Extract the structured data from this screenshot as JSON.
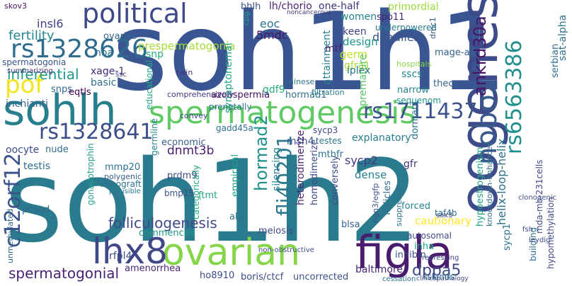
{
  "words": [
    {
      "text": "soh1h2",
      "color": "#2a7b8e"
    },
    {
      "text": "soh1h1",
      "color": "#3a5692"
    },
    {
      "text": "oogenesis",
      "color": "#3e4b8a"
    },
    {
      "text": "spermatogenesis",
      "color": "#5fc963"
    },
    {
      "text": "ovarian",
      "color": "#86d549"
    },
    {
      "text": "sohlh",
      "color": "#277f8e"
    },
    {
      "text": "figla",
      "color": "#4a1c6e"
    },
    {
      "text": "political",
      "color": "#3f4889"
    },
    {
      "text": "nobox",
      "color": "#38598c"
    },
    {
      "text": "lhx8",
      "color": "#3f4788"
    },
    {
      "text": "pof",
      "color": "#f1e51d"
    },
    {
      "text": "rs1328626",
      "color": "#2f6b8e"
    },
    {
      "text": "rs1711437",
      "color": "#3b528b"
    },
    {
      "text": "rs1328641",
      "color": "#3c4f8a"
    },
    {
      "text": "rs6563386",
      "color": "#218f8d"
    },
    {
      "text": "ankrd30a",
      "color": "#481467"
    },
    {
      "text": "c12orf12",
      "color": "#3b528b"
    },
    {
      "text": "flj40201",
      "color": "#2a788e"
    },
    {
      "text": "hormad2",
      "color": "#21908d"
    },
    {
      "text": "helix-loop-helix",
      "color": "#2d708e"
    },
    {
      "text": "folliculogenesis",
      "color": "#3e4a89"
    },
    {
      "text": "dppa5",
      "color": "#3e4989"
    },
    {
      "text": "spermatogonial",
      "color": "#482374"
    },
    {
      "text": "inferential",
      "color": "#1f9a8a"
    },
    {
      "text": "fertility",
      "color": "#25848e"
    },
    {
      "text": "skov3",
      "color": "#471365"
    },
    {
      "text": "insl6",
      "color": "#424086"
    },
    {
      "text": "bhlh",
      "color": "#3b528b"
    },
    {
      "text": "lh/chorio",
      "color": "#482173"
    },
    {
      "text": "one-half",
      "color": "#46327e"
    },
    {
      "text": "noncancerous",
      "color": "#453581"
    },
    {
      "text": "primordial",
      "color": "#9bd93c"
    },
    {
      "text": "spo11",
      "color": "#481f70"
    },
    {
      "text": "underpowered",
      "color": "#297a8e"
    },
    {
      "text": "ovaries",
      "color": "#31688e"
    },
    {
      "text": "prespermatogonia",
      "color": "#a5db36"
    },
    {
      "text": "women",
      "color": "#25858e"
    },
    {
      "text": "5mdc",
      "color": "#481668"
    },
    {
      "text": "eoc",
      "color": "#2c728e"
    },
    {
      "text": "cpg",
      "color": "#1f9e89"
    },
    {
      "text": "noa",
      "color": "#2a788e"
    },
    {
      "text": "deadliest",
      "color": "#3a548c"
    },
    {
      "text": "keen",
      "color": "#414487"
    },
    {
      "text": "design",
      "color": "#1f958b"
    },
    {
      "text": "germ",
      "color": "#bddf26"
    },
    {
      "text": "mage-a1",
      "color": "#34618d"
    },
    {
      "text": "dmc1",
      "color": "#38588c"
    },
    {
      "text": "serbian",
      "color": "#2e6e8e"
    },
    {
      "text": "theca",
      "color": "#355f8d"
    },
    {
      "text": "sat-alpha",
      "color": "#2c728e"
    },
    {
      "text": "xage-1",
      "color": "#482878"
    },
    {
      "text": "basic",
      "color": "#2c728e"
    },
    {
      "text": "snps",
      "color": "#31688e"
    },
    {
      "text": "eqtls",
      "color": "#440154"
    },
    {
      "text": "inchianti",
      "color": "#33638d"
    },
    {
      "text": "spermatogonia",
      "color": "#3b528b"
    },
    {
      "text": "summarizing",
      "color": "#472d7b"
    },
    {
      "text": "snp",
      "color": "#27ad81"
    },
    {
      "text": "ssc",
      "color": "#3e4a89"
    },
    {
      "text": "twin",
      "color": "#46337f"
    },
    {
      "text": "gfra1",
      "color": "#a2da37"
    },
    {
      "text": "iplex",
      "color": "#2c738e"
    },
    {
      "text": "sscs",
      "color": "#25848e"
    },
    {
      "text": "narrow",
      "color": "#26828e"
    },
    {
      "text": "sequenom",
      "color": "#1f948c"
    },
    {
      "text": "premature",
      "color": "#56c667"
    },
    {
      "text": "attainment",
      "color": "#26828e"
    },
    {
      "text": "hospitals",
      "color": "#8bd646"
    },
    {
      "text": "mtf",
      "color": "#482374"
    },
    {
      "text": "gdf9",
      "color": "#25ab82"
    },
    {
      "text": "chinese",
      "color": "#2d708e"
    },
    {
      "text": "azoospermia",
      "color": "#471063"
    },
    {
      "text": "filtration",
      "color": "#277f8e"
    },
    {
      "text": "hormad1",
      "color": "#2e6e8e"
    },
    {
      "text": "educational",
      "color": "#21a585"
    },
    {
      "text": "synaptonemal",
      "color": "#20a386"
    },
    {
      "text": "germline",
      "color": "#26828e"
    },
    {
      "text": "comprehensively",
      "color": "#453581"
    },
    {
      "text": "convey",
      "color": "#404688"
    },
    {
      "text": "prenatally",
      "color": "#2d708e"
    },
    {
      "text": "gadd45a",
      "color": "#2e6f8e"
    },
    {
      "text": "economic",
      "color": "#355f8d"
    },
    {
      "text": "msh4",
      "color": "#3b528b"
    },
    {
      "text": "dnmt3b",
      "color": "#481c6e"
    },
    {
      "text": "sycp3",
      "color": "#3e4a89"
    },
    {
      "text": "testes",
      "color": "#2a788e"
    },
    {
      "text": "explanatory",
      "color": "#287d8e"
    },
    {
      "text": "dormant",
      "color": "#2b748e"
    },
    {
      "text": "sycp2",
      "color": "#443983"
    },
    {
      "text": "gfr",
      "color": "#46327e"
    },
    {
      "text": "nude",
      "color": "#2f6b8e"
    },
    {
      "text": "oocyte",
      "color": "#3e4c8a"
    },
    {
      "text": "testis",
      "color": "#2c728e"
    },
    {
      "text": "mthfr",
      "color": "#2c728e"
    },
    {
      "text": "dense",
      "color": "#277f8e"
    },
    {
      "text": "mmp20",
      "color": "#2c728e"
    },
    {
      "text": "polygenic",
      "color": "#355e8d"
    },
    {
      "text": "xenograft",
      "color": "#2c728e"
    },
    {
      "text": "plausible",
      "color": "#287c8e"
    },
    {
      "text": "prdm9",
      "color": "#3f4788"
    },
    {
      "text": "empirical",
      "color": "#1fa088"
    },
    {
      "text": "heterodimerize",
      "color": "#482677"
    },
    {
      "text": "homodimerize",
      "color": "#3e4a89"
    },
    {
      "text": "silencing",
      "color": "#25848e"
    },
    {
      "text": "ftmt",
      "color": "#20a386"
    },
    {
      "text": "taf4b",
      "color": "#2f6c8e"
    },
    {
      "text": "forced",
      "color": "#25848e"
    },
    {
      "text": "cautionary",
      "color": "#fde725"
    },
    {
      "text": "gonadotrophin",
      "color": "#1fa187"
    },
    {
      "text": "posed",
      "color": "#31688e"
    },
    {
      "text": "bmp15",
      "color": "#3c4f8a"
    },
    {
      "text": "categorically",
      "color": "#22a884"
    },
    {
      "text": "alu",
      "color": "#2c728e"
    },
    {
      "text": "conversely",
      "color": "#3e4a89"
    },
    {
      "text": "blsa",
      "color": "#34608d"
    },
    {
      "text": "ngn3/egfp",
      "color": "#3b528b"
    },
    {
      "text": "follicles",
      "color": "#2d708e"
    },
    {
      "text": "suppressor",
      "color": "#2c728e"
    },
    {
      "text": "commenced",
      "color": "#1f978b"
    },
    {
      "text": "meiosis",
      "color": "#3e4a89"
    },
    {
      "text": "rfpl4",
      "color": "#3e4c8a"
    },
    {
      "text": "inha",
      "color": "#22a884"
    },
    {
      "text": "autosomal",
      "color": "#3e4a89"
    },
    {
      "text": "inhibin",
      "color": "#3e4a89"
    },
    {
      "text": "baltimore",
      "color": "#482677"
    },
    {
      "text": "amenorrhea",
      "color": "#482677"
    },
    {
      "text": "ho8910",
      "color": "#3e4a89"
    },
    {
      "text": "boris/ctcf",
      "color": "#3e4a89"
    },
    {
      "text": "uncorrected",
      "color": "#3b528b"
    },
    {
      "text": "islands",
      "color": "#2c728e"
    },
    {
      "text": "non-obstructive",
      "color": "#3e4a89"
    },
    {
      "text": "mda-mb-231cells",
      "color": "#404588"
    },
    {
      "text": "hypomethylation",
      "color": "#3e4a89"
    },
    {
      "text": "hypoestrogenism",
      "color": "#20a386"
    },
    {
      "text": "knockdown-enhanced",
      "color": "#2d708e"
    },
    {
      "text": "sycp1",
      "color": "#2c728e"
    },
    {
      "text": "sox3",
      "color": "#404588"
    },
    {
      "text": "building",
      "color": "#2c728e"
    },
    {
      "text": "clonogenic",
      "color": "#3e4a89"
    },
    {
      "text": "fsh",
      "color": "#3e4a89"
    },
    {
      "text": "leydig",
      "color": "#3e4a89"
    },
    {
      "text": "unmethylated",
      "color": "#31688e"
    },
    {
      "text": "repressing",
      "color": "#3e4a89"
    },
    {
      "text": "cessation",
      "color": "#2c728e"
    },
    {
      "text": "clinicopathology",
      "color": "#3e4a89"
    },
    {
      "text": "folliculogenesis2",
      "color": "#2c728e"
    }
  ]
}
